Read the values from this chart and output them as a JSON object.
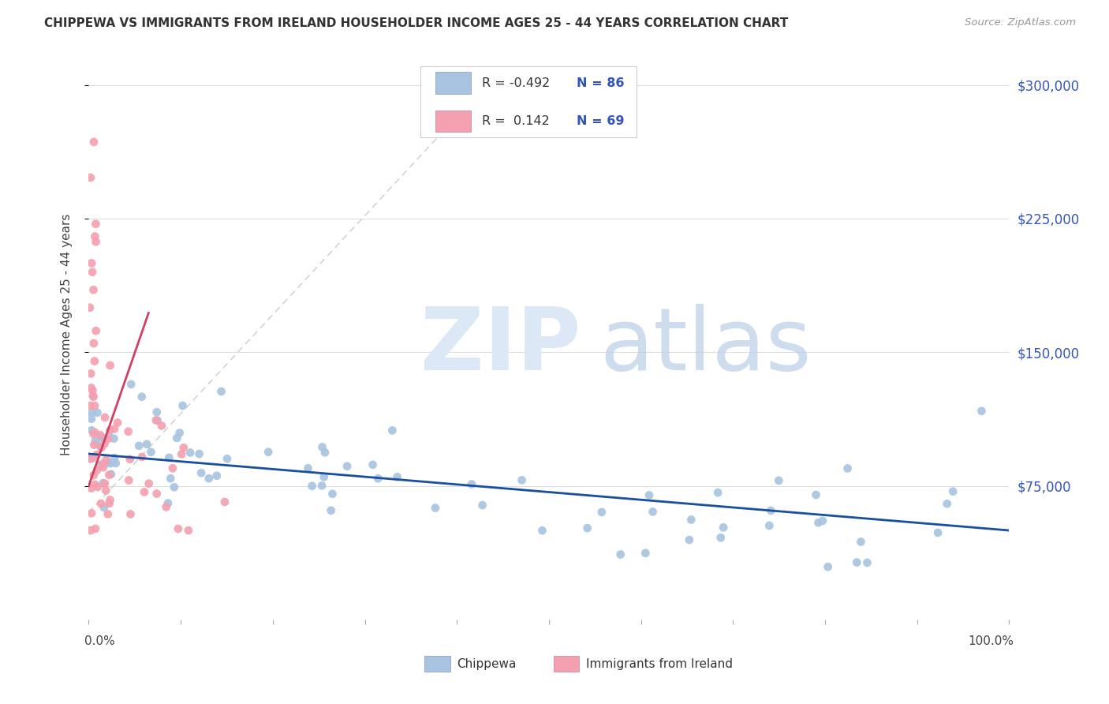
{
  "title": "CHIPPEWA VS IMMIGRANTS FROM IRELAND HOUSEHOLDER INCOME AGES 25 - 44 YEARS CORRELATION CHART",
  "source": "Source: ZipAtlas.com",
  "ylabel": "Householder Income Ages 25 - 44 years",
  "x_min": 0.0,
  "x_max": 1.0,
  "y_min": 0,
  "y_max": 320000,
  "y_tick_values": [
    75000,
    150000,
    225000,
    300000
  ],
  "y_tick_labels": [
    "$75,000",
    "$150,000",
    "$225,000",
    "$300,000"
  ],
  "chippewa_color": "#a8c4e0",
  "ireland_color": "#f4a0b0",
  "trendline_chippewa_color": "#1a4fa0",
  "trendline_ireland_color": "#d04060",
  "trendline_dashed_color": "#cccccc",
  "background_color": "#ffffff",
  "grid_color": "#dddddd",
  "right_label_color": "#3355bb",
  "legend_r1_text": "R = -0.492",
  "legend_n1_text": "N = 86",
  "legend_r2_text": "R =  0.142",
  "legend_n2_text": "N = 69"
}
